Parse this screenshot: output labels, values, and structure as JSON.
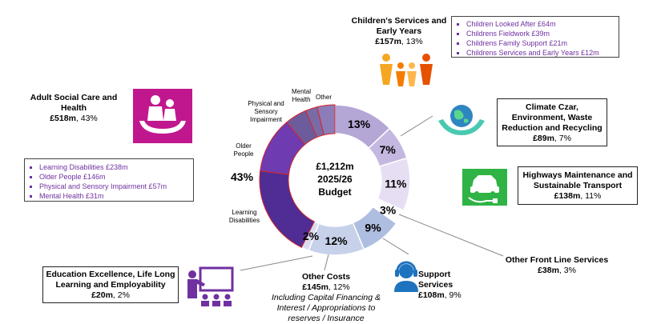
{
  "chart_data": {
    "type": "pie",
    "donut": true,
    "center": {
      "line1": "£1,212m",
      "line2": "2025/26",
      "line3": "Budget"
    },
    "slices": [
      {
        "name": "Children's Services and Early Years",
        "value": 157,
        "pct_label": "13%",
        "color": "#b4a7d6"
      },
      {
        "name": "Climate Czar, Environment, Waste Reduction and Recycling",
        "value": 89,
        "pct_label": "7%",
        "color": "#c4b8e0"
      },
      {
        "name": "Highways Maintenance and Sustainable Transport",
        "value": 138,
        "pct_label": "11%",
        "color": "#e6dff4"
      },
      {
        "name": "Other Front Line Services",
        "value": 38,
        "pct_label": "3%",
        "color": "#ffffff"
      },
      {
        "name": "Support Services",
        "value": 108,
        "pct_label": "9%",
        "color": "#aebee0"
      },
      {
        "name": "Other Costs",
        "value": 145,
        "pct_label": "12%",
        "color": "#c7d2ea"
      },
      {
        "name": "Education Excellence, Life Long Learning and Employability",
        "value": 20,
        "pct_label": "2%",
        "color": "#d9dcf2"
      },
      {
        "name": "Adult Social Care and Health",
        "value": 518,
        "pct_label": "43%",
        "color": "#6a4cae",
        "sub": [
          {
            "name": "Learning Disabilities",
            "value": 238,
            "color": "#4f2d94"
          },
          {
            "name": "Older People",
            "value": 146,
            "color": "#6f3bb0"
          },
          {
            "name": "Physical and Sensory Impairment",
            "value": 57,
            "color": "#6c5c9c"
          },
          {
            "name": "Mental Health",
            "value": 31,
            "color": "#7a6aa6"
          },
          {
            "name": "Other",
            "value": 46,
            "color": "#8c7cb8"
          }
        ]
      }
    ],
    "inner_labels": {
      "mental_health": [
        "Mental",
        "Health"
      ],
      "other": "Other",
      "physical": [
        "Physical and",
        "Sensory",
        "Impairment"
      ],
      "older": [
        "Older",
        "People"
      ],
      "learning": [
        "Learning",
        "Disabilities"
      ]
    }
  },
  "labels": {
    "children": {
      "title1": "Children's Services and",
      "title2": "Early Years",
      "amount": "£157m",
      "pct": ", 13%"
    },
    "climate": {
      "title1": "Climate Czar,",
      "title2": "Environment, Waste",
      "title3": "Reduction and Recycling",
      "amount": "£89m",
      "pct": ", 7%"
    },
    "highways": {
      "title1": "Highways Maintenance and",
      "title2": "Sustainable Transport",
      "amount": "£138m",
      "pct": ", 11%"
    },
    "front": {
      "title": "Other Front Line Services",
      "amount": "£38m",
      "pct": ", 3%"
    },
    "support": {
      "title1": "Support",
      "title2": "Services",
      "amount": "£108m",
      "pct": ", 9%"
    },
    "othercosts": {
      "title": "Other Costs",
      "amount": "£145m",
      "pct": ", 12%",
      "note1": "Including Capital Financing &",
      "note2": "Interest / Appropriations to",
      "note3": "reserves / Insurance"
    },
    "education": {
      "title1": "Education Excellence, Life Long",
      "title2": "Learning and Employability",
      "amount": "£20m",
      "pct": ", 2%"
    },
    "adult": {
      "title1": "Adult Social Care and",
      "title2": "Health",
      "amount": "£518m",
      "pct": ", 43%",
      "pct_big": "43%"
    }
  },
  "children_list": [
    "Children Looked After £64m",
    "Childrens Fieldwork £39m",
    "Childrens Family Support £21m",
    "Childrens Services and Early Years £12m"
  ],
  "adult_list": [
    "Learning Disabilities £238m",
    "Older People £146m",
    "Physical and Sensory Impairment £57m",
    "Mental Health £31m"
  ],
  "icons": [
    "family-icon",
    "globe-hands-icon",
    "electric-car-icon",
    "headset-icon",
    "teacher-icon",
    "care-hands-icon"
  ]
}
